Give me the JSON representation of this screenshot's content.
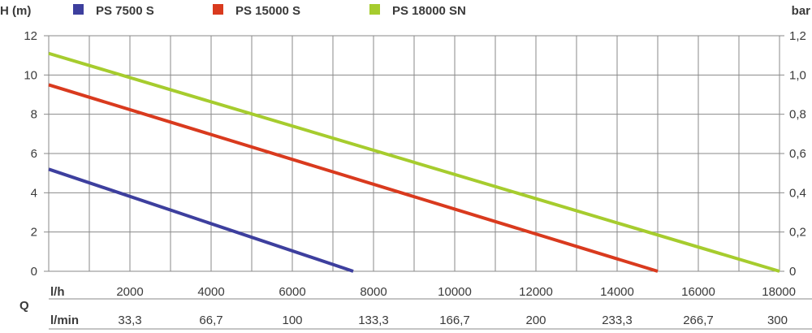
{
  "chart_data": {
    "type": "line",
    "y_axis_left": {
      "label": "H (m)",
      "ticks": [
        "0",
        "2",
        "4",
        "6",
        "8",
        "10",
        "12"
      ],
      "lim": [
        0,
        12
      ]
    },
    "y_axis_right": {
      "label": "bar",
      "ticks": [
        "0",
        "0,2",
        "0,4",
        "0,6",
        "0,8",
        "1,0",
        "1,2"
      ],
      "lim": [
        0,
        1.2
      ]
    },
    "x_axis": {
      "lim": [
        0,
        18000
      ],
      "gridlines_every": 1000,
      "q_label": "Q",
      "row1": {
        "unit_label": "l/h",
        "values": [
          2000,
          4000,
          6000,
          8000,
          10000,
          12000,
          14000,
          16000,
          18000
        ],
        "labels": [
          "2000",
          "4000",
          "6000",
          "8000",
          "10000",
          "12000",
          "14000",
          "16000",
          "18000"
        ]
      },
      "row2": {
        "unit_label": "l/min",
        "values": [
          2000,
          4000,
          6000,
          8000,
          10000,
          12000,
          14000,
          16000,
          18000
        ],
        "labels": [
          "33,3",
          "66,7",
          "100",
          "133,3",
          "166,7",
          "200",
          "233,3",
          "266,7",
          "300"
        ]
      }
    },
    "grid": true,
    "legend_position": "top",
    "series": [
      {
        "name": "PS 7500 S",
        "color": "#3d3f9e",
        "points": [
          [
            0,
            5.2
          ],
          [
            7500,
            0
          ]
        ]
      },
      {
        "name": "PS 15000 S",
        "color": "#d93a1e",
        "points": [
          [
            0,
            9.5
          ],
          [
            15000,
            0
          ]
        ]
      },
      {
        "name": "PS 18000 SN",
        "color": "#a6cc2e",
        "points": [
          [
            0,
            11.1
          ],
          [
            18000,
            0
          ]
        ]
      }
    ]
  }
}
